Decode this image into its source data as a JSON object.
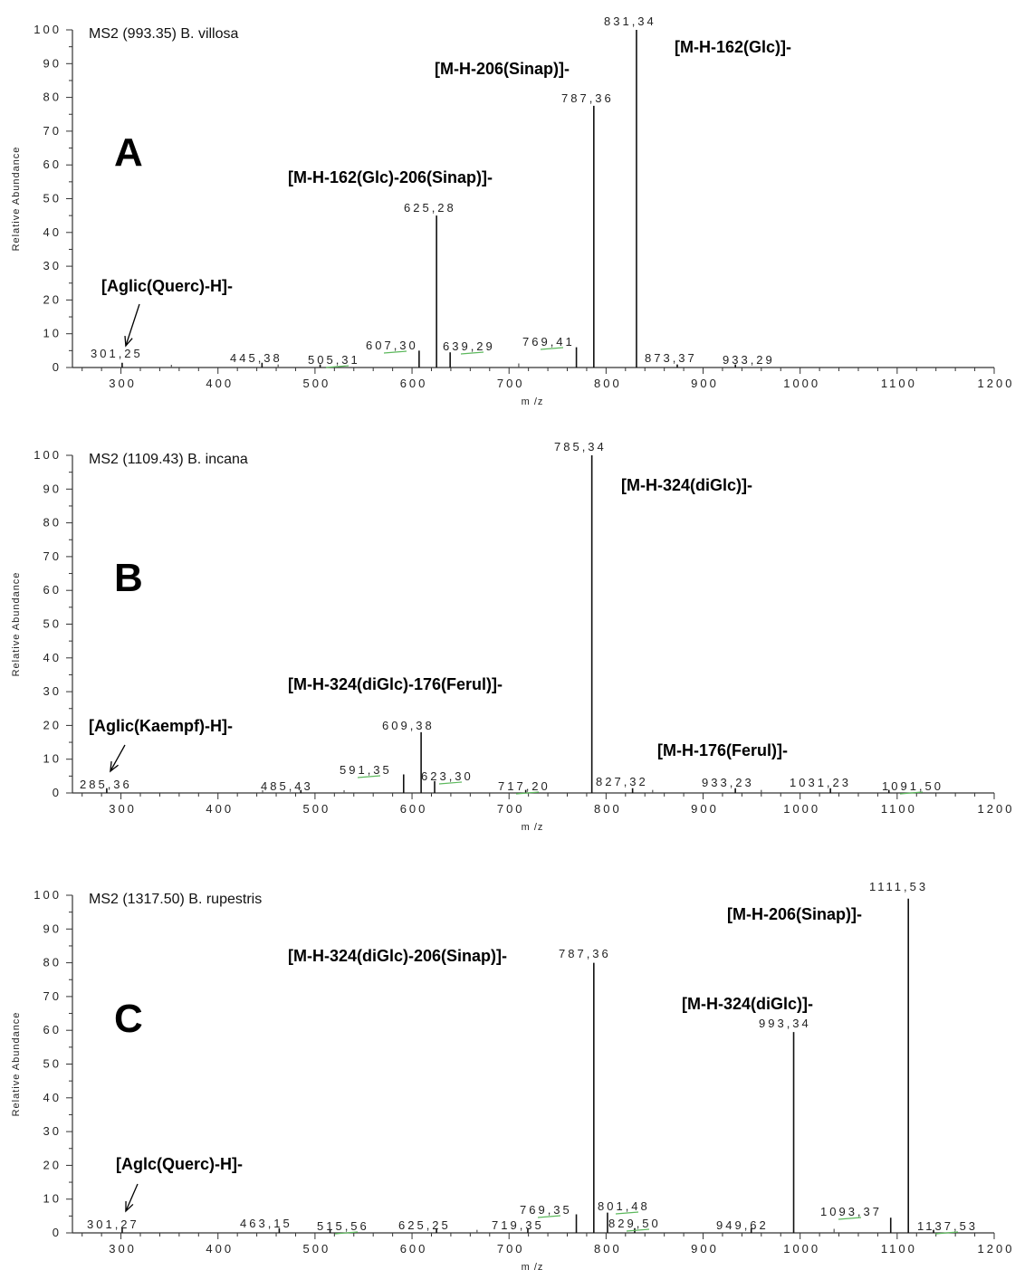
{
  "chart_data": [
    {
      "type": "bar",
      "panel": "A",
      "title": "MS2 (993.35) B. villosa",
      "xlabel": "m /z",
      "ylabel": "Relative Abundance",
      "xlim": [
        250,
        1200
      ],
      "ylim": [
        0,
        100
      ],
      "xticks": [
        300,
        400,
        500,
        600,
        700,
        800,
        900,
        1000,
        1100,
        1200
      ],
      "yticks": [
        0,
        10,
        20,
        30,
        40,
        50,
        60,
        70,
        80,
        90,
        100
      ],
      "peaks": [
        {
          "mz": 301.25,
          "abundance": 1.0,
          "label": "301,25"
        },
        {
          "mz": 445.38,
          "abundance": 1.0,
          "label": "445,38"
        },
        {
          "mz": 505.31,
          "abundance": 0.5,
          "label": "505,31"
        },
        {
          "mz": 607.3,
          "abundance": 5.0,
          "label": "607,30"
        },
        {
          "mz": 625.28,
          "abundance": 45.0,
          "label": "625,28"
        },
        {
          "mz": 639.29,
          "abundance": 4.5,
          "label": "639,29"
        },
        {
          "mz": 769.41,
          "abundance": 6.0,
          "label": "769,41"
        },
        {
          "mz": 787.36,
          "abundance": 77.5,
          "label": "787,36"
        },
        {
          "mz": 831.34,
          "abundance": 100.0,
          "label": "831,34"
        },
        {
          "mz": 873.37,
          "abundance": 0.5,
          "label": "873,37"
        },
        {
          "mz": 933.29,
          "abundance": 0.5,
          "label": "933,29"
        }
      ],
      "minor_peaks": [
        {
          "mz": 352,
          "abundance": 0.4
        },
        {
          "mz": 462,
          "abundance": 0.5
        },
        {
          "mz": 710,
          "abundance": 0.8
        }
      ],
      "annotations": [
        {
          "text": "[M-H-162(Glc)]-"
        },
        {
          "text": "[M-H-206(Sinap)]-"
        },
        {
          "text": "[M-H-162(Glc)-206(Sinap)]-"
        },
        {
          "text": "[Aglic(Querc)-H]-",
          "arrow_to_mz": 301.25
        }
      ]
    },
    {
      "type": "bar",
      "panel": "B",
      "title": "MS2 (1109.43) B. incana",
      "xlabel": "m /z",
      "ylabel": "Relative Abundance",
      "xlim": [
        250,
        1200
      ],
      "ylim": [
        0,
        100
      ],
      "xticks": [
        300,
        400,
        500,
        600,
        700,
        800,
        900,
        1000,
        1100,
        1200
      ],
      "yticks": [
        0,
        10,
        20,
        30,
        40,
        50,
        60,
        70,
        80,
        90,
        100
      ],
      "peaks": [
        {
          "mz": 285.36,
          "abundance": 1.0,
          "label": "285,36"
        },
        {
          "mz": 485.43,
          "abundance": 0.5,
          "label": "485,43"
        },
        {
          "mz": 591.35,
          "abundance": 5.5,
          "label": "591,35"
        },
        {
          "mz": 609.38,
          "abundance": 18.0,
          "label": "609,38"
        },
        {
          "mz": 623.3,
          "abundance": 3.5,
          "label": "623,30"
        },
        {
          "mz": 717.2,
          "abundance": 0.5,
          "label": "717,20"
        },
        {
          "mz": 785.34,
          "abundance": 100.0,
          "label": "785,34"
        },
        {
          "mz": 827.32,
          "abundance": 1.0,
          "label": "827,32"
        },
        {
          "mz": 933.23,
          "abundance": 1.0,
          "label": "933,23"
        },
        {
          "mz": 1031.23,
          "abundance": 1.0,
          "label": "1031,23"
        },
        {
          "mz": 1091.5,
          "abundance": 0.5,
          "label": "1091,50"
        }
      ],
      "minor_peaks": [
        {
          "mz": 446,
          "abundance": 0.4
        },
        {
          "mz": 530,
          "abundance": 0.4
        },
        {
          "mz": 848,
          "abundance": 0.5
        },
        {
          "mz": 960,
          "abundance": 0.5
        }
      ],
      "annotations": [
        {
          "text": "[M-H-324(diGlc)]-"
        },
        {
          "text": "[M-H-324(diGlc)-176(Ferul)]-"
        },
        {
          "text": "[Aglic(Kaempf)-H]-",
          "arrow_to_mz": 285.36
        },
        {
          "text": "[M-H-176(Ferul)]-"
        }
      ]
    },
    {
      "type": "bar",
      "panel": "C",
      "title": "MS2 (1317.50) B. rupestris",
      "xlabel": "m /z",
      "ylabel": "Relative Abundance",
      "xlim": [
        250,
        1200
      ],
      "ylim": [
        0,
        100
      ],
      "xticks": [
        300,
        400,
        500,
        600,
        700,
        800,
        900,
        1000,
        1100,
        1200
      ],
      "yticks": [
        0,
        10,
        20,
        30,
        40,
        50,
        60,
        70,
        80,
        90,
        100
      ],
      "peaks": [
        {
          "mz": 301.27,
          "abundance": 1.0,
          "label": "301,27"
        },
        {
          "mz": 463.15,
          "abundance": 1.0,
          "label": "463,15"
        },
        {
          "mz": 515.56,
          "abundance": 0.5,
          "label": "515,56"
        },
        {
          "mz": 625.25,
          "abundance": 1.0,
          "label": "625,25"
        },
        {
          "mz": 719.35,
          "abundance": 1.0,
          "label": "719,35"
        },
        {
          "mz": 769.35,
          "abundance": 5.5,
          "label": "769,35"
        },
        {
          "mz": 787.36,
          "abundance": 80.0,
          "label": "787,36"
        },
        {
          "mz": 801.48,
          "abundance": 6.0,
          "label": "801,48"
        },
        {
          "mz": 829.5,
          "abundance": 1.0,
          "label": "829,50"
        },
        {
          "mz": 949.62,
          "abundance": 1.0,
          "label": "949,62"
        },
        {
          "mz": 993.34,
          "abundance": 59.5,
          "label": "993,34"
        },
        {
          "mz": 1093.37,
          "abundance": 4.5,
          "label": "1093,37"
        },
        {
          "mz": 1111.53,
          "abundance": 99.0,
          "label": "1111,53"
        },
        {
          "mz": 1137.53,
          "abundance": 0.5,
          "label": "1137,53"
        }
      ],
      "minor_peaks": [
        {
          "mz": 667,
          "abundance": 0.5
        },
        {
          "mz": 1035,
          "abundance": 0.8
        }
      ],
      "annotations": [
        {
          "text": "[M-H-206(Sinap)]-"
        },
        {
          "text": "[M-H-324(diGlc)-206(Sinap)]-"
        },
        {
          "text": "[M-H-324(diGlc)]-"
        },
        {
          "text": "[Aglc(Querc)-H]-",
          "arrow_to_mz": 301.27
        }
      ]
    }
  ]
}
